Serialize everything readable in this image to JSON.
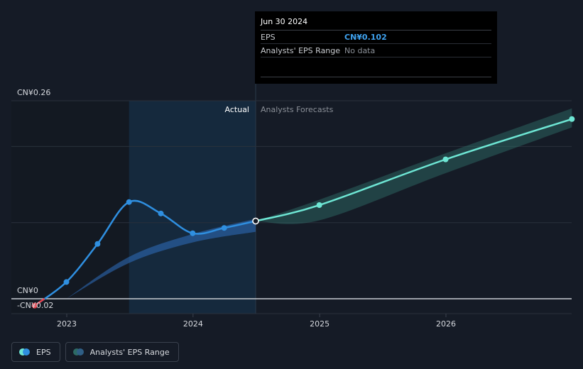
{
  "chart_data": {
    "type": "line",
    "y_axis": {
      "top_label": "CN¥0.26",
      "zero_label": "CN¥0",
      "ylim": [
        -0.02,
        0.26
      ]
    },
    "x_ticks": [
      "2023",
      "2024",
      "2025",
      "2026"
    ],
    "section_labels": {
      "actual": "Actual",
      "forecast": "Analysts Forecasts"
    },
    "series": [
      {
        "name": "EPS",
        "color": "#2f8fe0",
        "negative_color": "#e8404a",
        "points": [
          {
            "x": "2022-09-30",
            "y": -0.009
          },
          {
            "x": "2022-12-31",
            "y": 0.022
          },
          {
            "x": "2023-03-31",
            "y": 0.072
          },
          {
            "x": "2023-06-30",
            "y": 0.127
          },
          {
            "x": "2023-09-30",
            "y": 0.112
          },
          {
            "x": "2023-12-31",
            "y": 0.086
          },
          {
            "x": "2024-03-31",
            "y": 0.093
          },
          {
            "x": "2024-06-30",
            "y": 0.102
          }
        ]
      },
      {
        "name": "EPS Forecast",
        "color": "#6ee6d4",
        "points": [
          {
            "x": "2024-06-30",
            "y": 0.102
          },
          {
            "x": "2024-12-31",
            "y": 0.123
          },
          {
            "x": "2025-12-31",
            "y": 0.183
          },
          {
            "x": "2026-12-31",
            "y": 0.236
          }
        ]
      }
    ],
    "range_bands": [
      {
        "name": "Analysts' EPS Range (past)",
        "color": "#2f6fbf",
        "points": [
          {
            "x": "2022-12-31",
            "low": 0.0,
            "high": 0.0
          },
          {
            "x": "2023-06-30",
            "low": 0.047,
            "high": 0.055
          },
          {
            "x": "2023-12-31",
            "low": 0.074,
            "high": 0.085
          },
          {
            "x": "2024-06-30",
            "low": 0.088,
            "high": 0.105
          }
        ]
      },
      {
        "name": "Analysts' EPS Range (forecast)",
        "color": "#2d6a64",
        "points": [
          {
            "x": "2024-06-30",
            "low": 0.102,
            "high": 0.102
          },
          {
            "x": "2024-12-31",
            "low": 0.103,
            "high": 0.13
          },
          {
            "x": "2025-12-31",
            "low": 0.165,
            "high": 0.191
          },
          {
            "x": "2026-12-31",
            "low": 0.225,
            "high": 0.25
          }
        ]
      }
    ]
  },
  "tooltip": {
    "date": "Jun 30 2024",
    "rows": [
      {
        "label": "EPS",
        "value": "CN¥0.102"
      },
      {
        "label": "Analysts' EPS Range",
        "value": "No data"
      }
    ]
  },
  "legend": [
    {
      "label": "EPS",
      "color_a": "#6ee6d4",
      "color_b": "#2f8fe0"
    },
    {
      "label": "Analysts' EPS Range",
      "color_a": "#2d6a64",
      "color_b": "#2f5f86"
    }
  ],
  "partial_label": "-CN¥0.02"
}
